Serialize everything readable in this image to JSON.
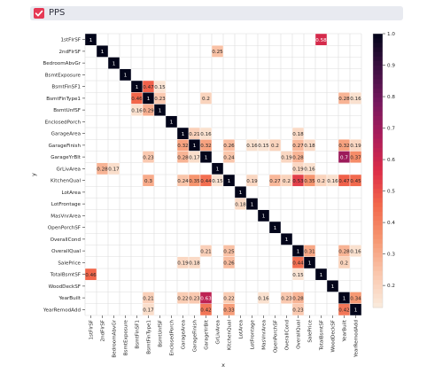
{
  "header": {
    "title": "PPS",
    "checked": true
  },
  "chart_data": {
    "type": "heatmap",
    "xlabel": "x",
    "ylabel": "y",
    "categories": [
      "1stFlrSF",
      "2ndFlrSF",
      "BedroomAbvGr",
      "BsmtExposure",
      "BsmtFinSF1",
      "BsmtFinType1",
      "BsmtUnfSF",
      "EnclosedPorch",
      "GarageArea",
      "GarageFinish",
      "GarageYrBlt",
      "GrLivArea",
      "KitchenQual",
      "LotArea",
      "LotFrontage",
      "MasVnrArea",
      "OpenPorchSF",
      "OverallCond",
      "OverallQual",
      "SalePrice",
      "TotalBsmtSF",
      "WoodDeckSF",
      "YearBuilt",
      "YearRemodAdd"
    ],
    "vmin": 0.13,
    "vmax": 1.0,
    "colorbar_ticks": [
      "0.2",
      "0.3",
      "0.4",
      "0.5",
      "0.6",
      "0.7",
      "0.8",
      "0.9",
      "1.0"
    ],
    "cells": [
      {
        "row": "1stFlrSF",
        "col": "1stFlrSF",
        "value": "1"
      },
      {
        "row": "1stFlrSF",
        "col": "TotalBsmtSF",
        "value": "0.58"
      },
      {
        "row": "2ndFlrSF",
        "col": "2ndFlrSF",
        "value": "1"
      },
      {
        "row": "2ndFlrSF",
        "col": "GrLivArea",
        "value": "0.25"
      },
      {
        "row": "BedroomAbvGr",
        "col": "BedroomAbvGr",
        "value": "1"
      },
      {
        "row": "BsmtExposure",
        "col": "BsmtExposure",
        "value": "1"
      },
      {
        "row": "BsmtFinSF1",
        "col": "BsmtFinSF1",
        "value": "1"
      },
      {
        "row": "BsmtFinSF1",
        "col": "BsmtFinType1",
        "value": "0.47"
      },
      {
        "row": "BsmtFinSF1",
        "col": "BsmtUnfSF",
        "value": "0.15"
      },
      {
        "row": "BsmtFinType1",
        "col": "BsmtFinSF1",
        "value": "0.46"
      },
      {
        "row": "BsmtFinType1",
        "col": "BsmtFinType1",
        "value": "1"
      },
      {
        "row": "BsmtFinType1",
        "col": "BsmtUnfSF",
        "value": "0.23"
      },
      {
        "row": "BsmtFinType1",
        "col": "GarageYrBlt",
        "value": "0.2"
      },
      {
        "row": "BsmtFinType1",
        "col": "YearBuilt",
        "value": "0.28"
      },
      {
        "row": "BsmtFinType1",
        "col": "YearRemodAdd",
        "value": "0.16"
      },
      {
        "row": "BsmtUnfSF",
        "col": "BsmtFinSF1",
        "value": "0.16"
      },
      {
        "row": "BsmtUnfSF",
        "col": "BsmtFinType1",
        "value": "0.29"
      },
      {
        "row": "BsmtUnfSF",
        "col": "BsmtUnfSF",
        "value": "1"
      },
      {
        "row": "EnclosedPorch",
        "col": "EnclosedPorch",
        "value": "1"
      },
      {
        "row": "GarageArea",
        "col": "GarageArea",
        "value": "1"
      },
      {
        "row": "GarageArea",
        "col": "GarageFinish",
        "value": "0.21"
      },
      {
        "row": "GarageArea",
        "col": "GarageYrBlt",
        "value": "0.16"
      },
      {
        "row": "GarageArea",
        "col": "OverallQual",
        "value": "0.18"
      },
      {
        "row": "GarageFinish",
        "col": "GarageArea",
        "value": "0.32"
      },
      {
        "row": "GarageFinish",
        "col": "GarageFinish",
        "value": "1"
      },
      {
        "row": "GarageFinish",
        "col": "GarageYrBlt",
        "value": "0.32"
      },
      {
        "row": "GarageFinish",
        "col": "KitchenQual",
        "value": "0.26"
      },
      {
        "row": "GarageFinish",
        "col": "LotFrontage",
        "value": "0.16"
      },
      {
        "row": "GarageFinish",
        "col": "MasVnrArea",
        "value": "0.15"
      },
      {
        "row": "GarageFinish",
        "col": "OpenPorchSF",
        "value": "0.2"
      },
      {
        "row": "GarageFinish",
        "col": "OverallQual",
        "value": "0.27"
      },
      {
        "row": "GarageFinish",
        "col": "SalePrice",
        "value": "0.18"
      },
      {
        "row": "GarageFinish",
        "col": "YearBuilt",
        "value": "0.32"
      },
      {
        "row": "GarageFinish",
        "col": "YearRemodAdd",
        "value": "0.19"
      },
      {
        "row": "GarageYrBlt",
        "col": "BsmtFinType1",
        "value": "0.23"
      },
      {
        "row": "GarageYrBlt",
        "col": "GarageArea",
        "value": "0.28"
      },
      {
        "row": "GarageYrBlt",
        "col": "GarageFinish",
        "value": "0.17"
      },
      {
        "row": "GarageYrBlt",
        "col": "GarageYrBlt",
        "value": "1"
      },
      {
        "row": "GarageYrBlt",
        "col": "KitchenQual",
        "value": "0.24"
      },
      {
        "row": "GarageYrBlt",
        "col": "OverallCond",
        "value": "0.19"
      },
      {
        "row": "GarageYrBlt",
        "col": "OverallQual",
        "value": "0.28"
      },
      {
        "row": "GarageYrBlt",
        "col": "YearBuilt",
        "value": "0.7"
      },
      {
        "row": "GarageYrBlt",
        "col": "YearRemodAdd",
        "value": "0.37"
      },
      {
        "row": "GrLivArea",
        "col": "2ndFlrSF",
        "value": "0.28"
      },
      {
        "row": "GrLivArea",
        "col": "BedroomAbvGr",
        "value": "0.17"
      },
      {
        "row": "GrLivArea",
        "col": "GrLivArea",
        "value": "1"
      },
      {
        "row": "GrLivArea",
        "col": "OverallQual",
        "value": "0.19"
      },
      {
        "row": "GrLivArea",
        "col": "SalePrice",
        "value": "0.16"
      },
      {
        "row": "KitchenQual",
        "col": "BsmtFinType1",
        "value": "0.3"
      },
      {
        "row": "KitchenQual",
        "col": "GarageArea",
        "value": "0.24"
      },
      {
        "row": "KitchenQual",
        "col": "GarageFinish",
        "value": "0.35"
      },
      {
        "row": "KitchenQual",
        "col": "GarageYrBlt",
        "value": "0.44"
      },
      {
        "row": "KitchenQual",
        "col": "GrLivArea",
        "value": "0.15"
      },
      {
        "row": "KitchenQual",
        "col": "KitchenQual",
        "value": "1"
      },
      {
        "row": "KitchenQual",
        "col": "LotFrontage",
        "value": "0.19"
      },
      {
        "row": "KitchenQual",
        "col": "OpenPorchSF",
        "value": "0.27"
      },
      {
        "row": "KitchenQual",
        "col": "OverallCond",
        "value": "0.2"
      },
      {
        "row": "KitchenQual",
        "col": "OverallQual",
        "value": "0.53"
      },
      {
        "row": "KitchenQual",
        "col": "SalePrice",
        "value": "0.35"
      },
      {
        "row": "KitchenQual",
        "col": "TotalBsmtSF",
        "value": "0.2"
      },
      {
        "row": "KitchenQual",
        "col": "WoodDeckSF",
        "value": "0.16"
      },
      {
        "row": "KitchenQual",
        "col": "YearBuilt",
        "value": "0.47"
      },
      {
        "row": "KitchenQual",
        "col": "YearRemodAdd",
        "value": "0.45"
      },
      {
        "row": "LotArea",
        "col": "LotArea",
        "value": "1"
      },
      {
        "row": "LotFrontage",
        "col": "LotArea",
        "value": "0.18"
      },
      {
        "row": "LotFrontage",
        "col": "LotFrontage",
        "value": "1"
      },
      {
        "row": "MasVnrArea",
        "col": "MasVnrArea",
        "value": "1"
      },
      {
        "row": "OpenPorchSF",
        "col": "OpenPorchSF",
        "value": "1"
      },
      {
        "row": "OverallCond",
        "col": "OverallCond",
        "value": "1"
      },
      {
        "row": "OverallQual",
        "col": "GarageYrBlt",
        "value": "0.21"
      },
      {
        "row": "OverallQual",
        "col": "KitchenQual",
        "value": "0.25"
      },
      {
        "row": "OverallQual",
        "col": "OverallQual",
        "value": "1"
      },
      {
        "row": "OverallQual",
        "col": "SalePrice",
        "value": "0.31"
      },
      {
        "row": "OverallQual",
        "col": "YearBuilt",
        "value": "0.28"
      },
      {
        "row": "OverallQual",
        "col": "YearRemodAdd",
        "value": "0.16"
      },
      {
        "row": "SalePrice",
        "col": "GarageArea",
        "value": "0.19"
      },
      {
        "row": "SalePrice",
        "col": "GarageFinish",
        "value": "0.18"
      },
      {
        "row": "SalePrice",
        "col": "KitchenQual",
        "value": "0.26"
      },
      {
        "row": "SalePrice",
        "col": "OverallQual",
        "value": "0.44"
      },
      {
        "row": "SalePrice",
        "col": "SalePrice",
        "value": "1"
      },
      {
        "row": "SalePrice",
        "col": "YearBuilt",
        "value": "0.2"
      },
      {
        "row": "TotalBsmtSF",
        "col": "1stFlrSF",
        "value": "0.46"
      },
      {
        "row": "TotalBsmtSF",
        "col": "OverallQual",
        "value": "0.15"
      },
      {
        "row": "TotalBsmtSF",
        "col": "TotalBsmtSF",
        "value": "1"
      },
      {
        "row": "WoodDeckSF",
        "col": "WoodDeckSF",
        "value": "1"
      },
      {
        "row": "YearBuilt",
        "col": "BsmtFinType1",
        "value": "0.21"
      },
      {
        "row": "YearBuilt",
        "col": "GarageArea",
        "value": "0.22"
      },
      {
        "row": "YearBuilt",
        "col": "GarageFinish",
        "value": "0.23"
      },
      {
        "row": "YearBuilt",
        "col": "GarageYrBlt",
        "value": "0.63"
      },
      {
        "row": "YearBuilt",
        "col": "KitchenQual",
        "value": "0.22"
      },
      {
        "row": "YearBuilt",
        "col": "MasVnrArea",
        "value": "0.16"
      },
      {
        "row": "YearBuilt",
        "col": "OverallCond",
        "value": "0.23"
      },
      {
        "row": "YearBuilt",
        "col": "OverallQual",
        "value": "0.28"
      },
      {
        "row": "YearBuilt",
        "col": "YearBuilt",
        "value": "1"
      },
      {
        "row": "YearBuilt",
        "col": "YearRemodAdd",
        "value": "0.34"
      },
      {
        "row": "YearRemodAdd",
        "col": "BsmtFinType1",
        "value": "0.17"
      },
      {
        "row": "YearRemodAdd",
        "col": "GarageYrBlt",
        "value": "0.42"
      },
      {
        "row": "YearRemodAdd",
        "col": "KitchenQual",
        "value": "0.33"
      },
      {
        "row": "YearRemodAdd",
        "col": "OverallQual",
        "value": "0.23"
      },
      {
        "row": "YearRemodAdd",
        "col": "YearBuilt",
        "value": "0.42"
      },
      {
        "row": "YearRemodAdd",
        "col": "YearRemodAdd",
        "value": "1"
      }
    ]
  }
}
